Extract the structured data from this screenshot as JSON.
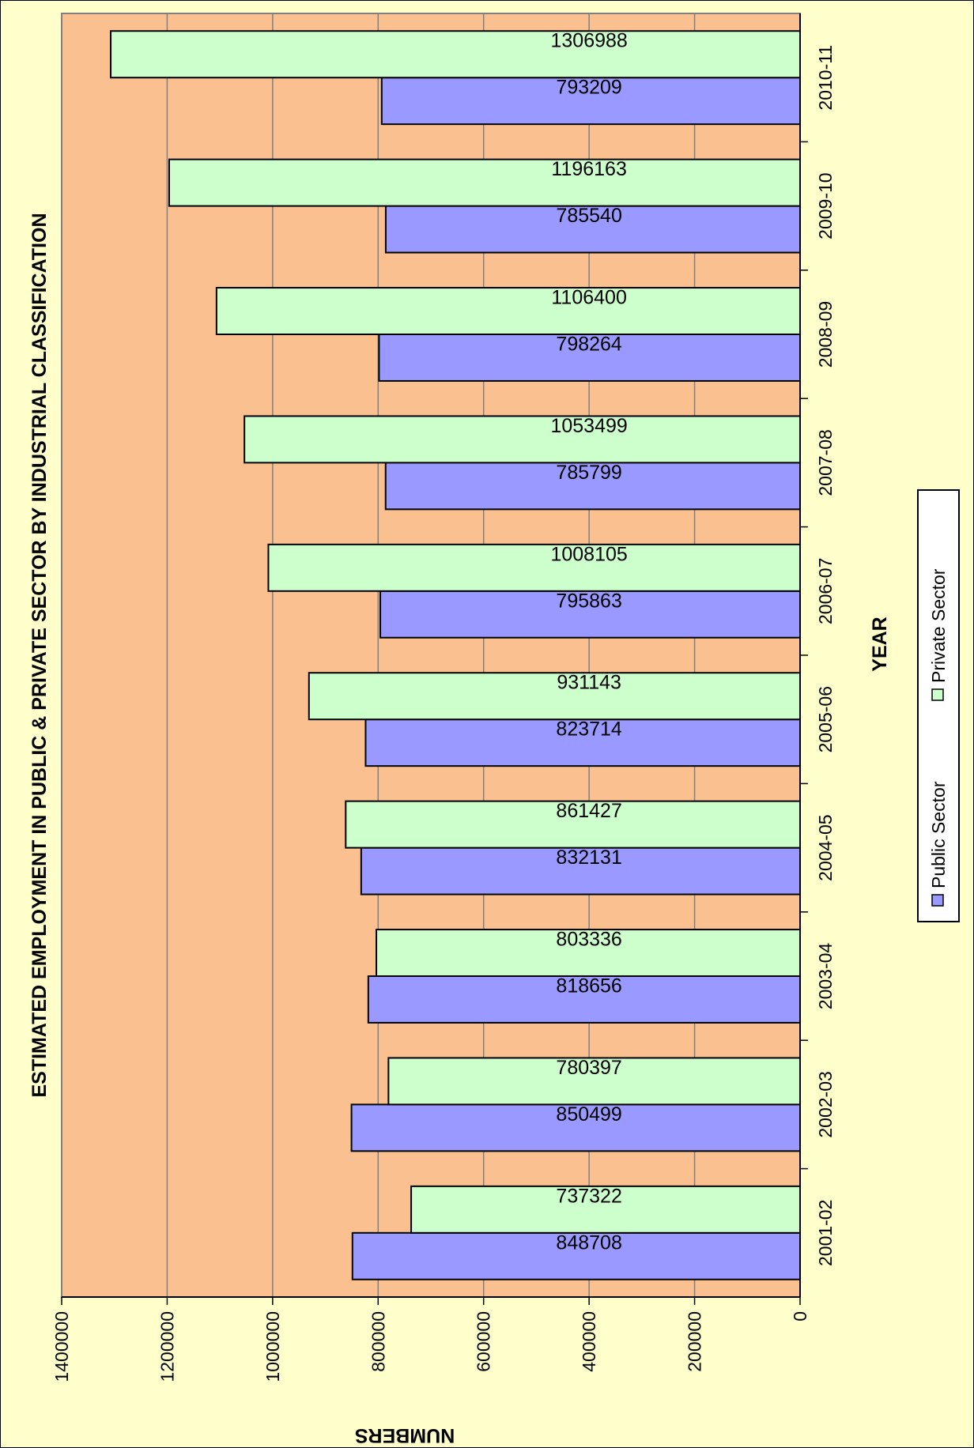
{
  "chart_data": {
    "type": "bar",
    "orientation": "horizontal-bars-rotated-page",
    "title": "ESTIMATED EMPLOYMENT IN PUBLIC & PRIVATE SECTOR BY INDUSTRIAL CLASSIFICATION",
    "xlabel": "YEAR",
    "ylabel": "NUMBERS",
    "categories": [
      "2001-02",
      "2002-03",
      "2003-04",
      "2004-05",
      "2005-06",
      "2006-07",
      "2007-08",
      "2008-09",
      "2009-10",
      "2010-11"
    ],
    "series": [
      {
        "name": "Public Sector",
        "color": "#9999ff",
        "values": [
          848708,
          850499,
          818656,
          832131,
          823714,
          795863,
          785799,
          798264,
          785540,
          793209
        ]
      },
      {
        "name": "Private Sector",
        "color": "#ccffcc",
        "values": [
          737322,
          780397,
          803336,
          861427,
          931143,
          1008105,
          1053499,
          1106400,
          1196163,
          1306988
        ]
      }
    ],
    "ylim": [
      0,
      1400000
    ],
    "ticks": [
      "0",
      "200000",
      "400000",
      "600000",
      "800000",
      "1000000",
      "1200000",
      "1400000"
    ],
    "grid": true,
    "legend_position": "right",
    "plot_background": "#fac090",
    "page_background": "#ffffcc"
  }
}
